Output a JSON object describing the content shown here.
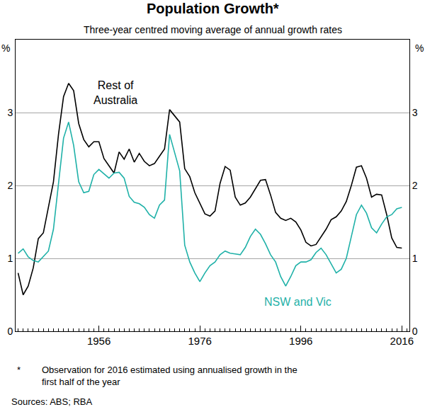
{
  "chart_data": {
    "type": "line",
    "title": "Population Growth*",
    "subtitle": "Three-year centred moving average of annual growth rates",
    "ylabel": "%",
    "footnote": {
      "marker": "*",
      "text": "Observation for 2016 estimated using annualised growth in the first half of the year"
    },
    "source": "Sources: ABS; RBA",
    "grid": true,
    "xlim": [
      1939.5,
      2017.5
    ],
    "xticks": [
      1956,
      1976,
      1996,
      2016
    ],
    "ylim": [
      0,
      4
    ],
    "yticks": [
      0,
      1,
      2,
      3
    ],
    "x": [
      1940,
      1941,
      1942,
      1943,
      1944,
      1945,
      1946,
      1947,
      1948,
      1949,
      1950,
      1951,
      1952,
      1953,
      1954,
      1955,
      1956,
      1957,
      1958,
      1959,
      1960,
      1961,
      1962,
      1963,
      1964,
      1965,
      1966,
      1967,
      1968,
      1969,
      1970,
      1971,
      1972,
      1973,
      1974,
      1975,
      1976,
      1977,
      1978,
      1979,
      1980,
      1981,
      1982,
      1983,
      1984,
      1985,
      1986,
      1987,
      1988,
      1989,
      1990,
      1991,
      1992,
      1993,
      1994,
      1995,
      1996,
      1997,
      1998,
      1999,
      2000,
      2001,
      2002,
      2003,
      2004,
      2005,
      2006,
      2007,
      2008,
      2009,
      2010,
      2011,
      2012,
      2013,
      2014,
      2015,
      2016
    ],
    "series": [
      {
        "name": "Rest of Australia",
        "color": "#000000",
        "values": [
          0.8,
          0.5,
          0.62,
          0.87,
          1.27,
          1.35,
          1.7,
          2.05,
          2.7,
          3.22,
          3.4,
          3.3,
          2.85,
          2.63,
          2.53,
          2.6,
          2.6,
          2.37,
          2.27,
          2.17,
          2.46,
          2.36,
          2.5,
          2.32,
          2.44,
          2.33,
          2.27,
          2.3,
          2.4,
          2.5,
          3.04,
          2.95,
          2.87,
          2.23,
          2.12,
          1.9,
          1.75,
          1.61,
          1.58,
          1.65,
          2.03,
          2.26,
          2.21,
          1.84,
          1.73,
          1.76,
          1.84,
          1.95,
          2.07,
          2.08,
          1.87,
          1.63,
          1.55,
          1.52,
          1.55,
          1.5,
          1.39,
          1.22,
          1.17,
          1.19,
          1.29,
          1.4,
          1.53,
          1.57,
          1.65,
          1.78,
          2.0,
          2.25,
          2.27,
          2.1,
          1.84,
          1.88,
          1.87,
          1.6,
          1.28,
          1.15,
          1.14
        ]
      },
      {
        "name": "NSW and Vic",
        "color": "#1fb1a8",
        "values": [
          1.07,
          1.13,
          1.02,
          0.97,
          0.95,
          1.02,
          1.1,
          1.4,
          2.0,
          2.65,
          2.87,
          2.55,
          2.05,
          1.9,
          1.92,
          2.15,
          2.22,
          2.16,
          2.1,
          2.17,
          2.18,
          2.1,
          1.85,
          1.77,
          1.75,
          1.7,
          1.6,
          1.55,
          1.73,
          1.8,
          2.7,
          2.45,
          2.2,
          1.18,
          0.95,
          0.8,
          0.68,
          0.8,
          0.9,
          0.95,
          1.05,
          1.1,
          1.07,
          1.06,
          1.05,
          1.15,
          1.3,
          1.4,
          1.33,
          1.2,
          1.05,
          0.95,
          0.75,
          0.62,
          0.75,
          0.9,
          0.95,
          0.95,
          0.98,
          1.08,
          1.14,
          1.05,
          0.93,
          0.8,
          0.85,
          1.0,
          1.3,
          1.6,
          1.73,
          1.62,
          1.42,
          1.35,
          1.47,
          1.57,
          1.6,
          1.68,
          1.7
        ]
      }
    ]
  }
}
